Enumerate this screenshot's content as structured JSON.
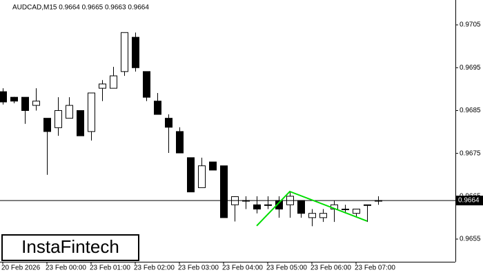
{
  "chart_data": {
    "type": "candlestick",
    "title": "AUDCAD,M15  0.9664 0.9665 0.9663 0.9664",
    "categories": [
      "20 Feb 2026",
      null,
      null,
      null,
      "23 Feb 00:00",
      null,
      null,
      null,
      "23 Feb 01:00",
      null,
      null,
      null,
      "23 Feb 02:00",
      null,
      null,
      null,
      "23 Feb 03:00",
      null,
      null,
      null,
      "23 Feb 04:00",
      null,
      null,
      null,
      "23 Feb 05:00",
      null,
      null,
      null,
      "23 Feb 06:00",
      null,
      null,
      null,
      "23 Feb 07:00",
      null,
      null
    ],
    "open": [
      0.96894,
      0.96881,
      0.96881,
      0.96862,
      0.96832,
      0.9681,
      0.96832,
      0.9685,
      0.96801,
      0.96902,
      0.96902,
      0.96941,
      0.97021,
      0.96941,
      0.96872,
      0.96832,
      0.96801,
      0.9674,
      0.9667,
      0.9673,
      0.96721,
      0.9663,
      0.9664,
      0.9663,
      0.9663,
      0.9664,
      0.9663,
      0.9664,
      0.966,
      0.966,
      0.9662,
      0.9662,
      0.9661,
      0.9663,
      0.9664
    ],
    "high": [
      0.96902,
      0.96882,
      0.96881,
      0.96902,
      0.96832,
      0.96881,
      0.96881,
      0.9685,
      0.96891,
      0.96921,
      0.96952,
      0.97032,
      0.97032,
      0.96941,
      0.96891,
      0.96841,
      0.96811,
      0.9674,
      0.9674,
      0.9673,
      0.96721,
      0.9665,
      0.9665,
      0.9665,
      0.9665,
      0.9665,
      0.9666,
      0.9664,
      0.9662,
      0.9662,
      0.9664,
      0.9663,
      0.9662,
      0.9663,
      0.9665
    ],
    "low": [
      0.96864,
      0.96867,
      0.96819,
      0.9685,
      0.967,
      0.96791,
      0.96832,
      0.96791,
      0.9678,
      0.96872,
      0.96902,
      0.96931,
      0.96941,
      0.96872,
      0.96841,
      0.96751,
      0.96751,
      0.9666,
      0.9667,
      0.96711,
      0.966,
      0.96591,
      0.9662,
      0.9661,
      0.9662,
      0.966,
      0.966,
      0.966,
      0.9658,
      0.9659,
      0.9659,
      0.9661,
      0.966,
      0.9659,
      0.9663
    ],
    "close": [
      0.9687,
      0.96872,
      0.9685,
      0.96872,
      0.96801,
      0.9685,
      0.96862,
      0.96791,
      0.96891,
      0.96912,
      0.96931,
      0.97032,
      0.9695,
      0.96881,
      0.96841,
      0.96811,
      0.96751,
      0.9666,
      0.96721,
      0.96711,
      0.966,
      0.96649,
      0.9664,
      0.9662,
      0.9663,
      0.9662,
      0.9665,
      0.9661,
      0.9661,
      0.9661,
      0.9663,
      0.9662,
      0.9662,
      0.9663,
      0.9664
    ],
    "ylim": [
      0.96497,
      0.97108
    ],
    "yticks": [
      0.9655,
      0.9665,
      0.9675,
      0.9685,
      0.9695,
      0.9705
    ],
    "current_price": 0.9664,
    "pattern": {
      "color": "#00dd00",
      "x": [
        23,
        26,
        33
      ],
      "values": [
        0.96581,
        0.96661,
        0.96592
      ]
    },
    "watermark": "InstaFintech"
  }
}
